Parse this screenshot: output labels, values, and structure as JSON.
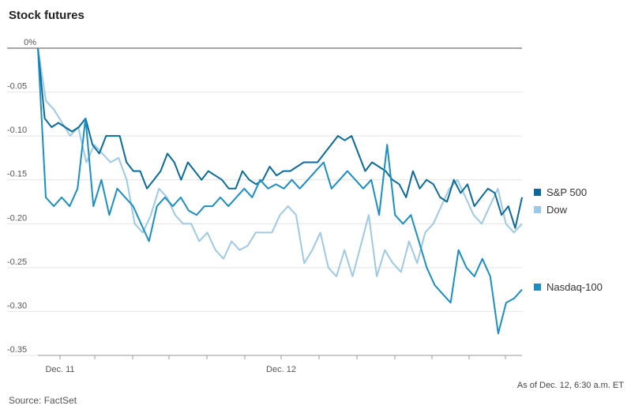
{
  "chart_data": {
    "type": "line",
    "title": "Stock futures",
    "source": "Source: FactSet",
    "note": "As of Dec. 12, 6:30 a.m. ET",
    "y_ticks": [
      "0%",
      "-0.05",
      "-0.10",
      "-0.15",
      "-0.20",
      "-0.25",
      "-0.30",
      "-0.35"
    ],
    "y_tick_values": [
      0,
      -0.05,
      -0.1,
      -0.15,
      -0.2,
      -0.25,
      -0.3,
      -0.35
    ],
    "ylim": [
      -0.35,
      0
    ],
    "x_labels": [
      "Dec. 11",
      "Dec. 12"
    ],
    "grid": true,
    "legend_placement": "right",
    "series": [
      {
        "name": "S&P 500",
        "color": "#0a6a9a",
        "values": [
          0,
          -0.08,
          -0.09,
          -0.085,
          -0.09,
          -0.095,
          -0.09,
          -0.08,
          -0.11,
          -0.12,
          -0.1,
          -0.1,
          -0.1,
          -0.13,
          -0.14,
          -0.14,
          -0.16,
          -0.15,
          -0.14,
          -0.12,
          -0.13,
          -0.15,
          -0.13,
          -0.14,
          -0.15,
          -0.14,
          -0.145,
          -0.15,
          -0.16,
          -0.16,
          -0.14,
          -0.15,
          -0.155,
          -0.15,
          -0.135,
          -0.145,
          -0.14,
          -0.14,
          -0.135,
          -0.13,
          -0.13,
          -0.13,
          -0.12,
          -0.11,
          -0.1,
          -0.105,
          -0.1,
          -0.12,
          -0.14,
          -0.13,
          -0.135,
          -0.14,
          -0.15,
          -0.155,
          -0.17,
          -0.14,
          -0.16,
          -0.15,
          -0.155,
          -0.17,
          -0.175,
          -0.15,
          -0.165,
          -0.155,
          -0.18,
          -0.17,
          -0.16,
          -0.165,
          -0.19,
          -0.18,
          -0.205,
          -0.17
        ]
      },
      {
        "name": "Dow",
        "color": "#9ec9e6",
        "values": [
          0,
          -0.06,
          -0.07,
          -0.085,
          -0.1,
          -0.09,
          -0.13,
          -0.11,
          -0.12,
          -0.13,
          -0.125,
          -0.15,
          -0.2,
          -0.21,
          -0.19,
          -0.16,
          -0.17,
          -0.19,
          -0.2,
          -0.2,
          -0.22,
          -0.21,
          -0.23,
          -0.24,
          -0.22,
          -0.23,
          -0.225,
          -0.21,
          -0.21,
          -0.21,
          -0.19,
          -0.18,
          -0.19,
          -0.245,
          -0.23,
          -0.21,
          -0.25,
          -0.26,
          -0.23,
          -0.26,
          -0.225,
          -0.19,
          -0.26,
          -0.23,
          -0.245,
          -0.255,
          -0.22,
          -0.245,
          -0.21,
          -0.2,
          -0.18,
          -0.16,
          -0.15,
          -0.17,
          -0.19,
          -0.2,
          -0.18,
          -0.16,
          -0.2,
          -0.21,
          -0.2
        ]
      },
      {
        "name": "Nasdaq-100",
        "color": "#1b8ec4",
        "values": [
          0,
          -0.17,
          -0.18,
          -0.17,
          -0.18,
          -0.16,
          -0.08,
          -0.18,
          -0.15,
          -0.19,
          -0.16,
          -0.17,
          -0.18,
          -0.2,
          -0.22,
          -0.18,
          -0.17,
          -0.18,
          -0.17,
          -0.185,
          -0.19,
          -0.18,
          -0.18,
          -0.17,
          -0.18,
          -0.17,
          -0.16,
          -0.17,
          -0.15,
          -0.16,
          -0.155,
          -0.16,
          -0.15,
          -0.16,
          -0.15,
          -0.14,
          -0.13,
          -0.16,
          -0.15,
          -0.14,
          -0.15,
          -0.16,
          -0.15,
          -0.19,
          -0.11,
          -0.19,
          -0.2,
          -0.19,
          -0.22,
          -0.25,
          -0.27,
          -0.28,
          -0.29,
          -0.23,
          -0.25,
          -0.26,
          -0.24,
          -0.26,
          -0.325,
          -0.29,
          -0.285,
          -0.275
        ]
      }
    ]
  }
}
